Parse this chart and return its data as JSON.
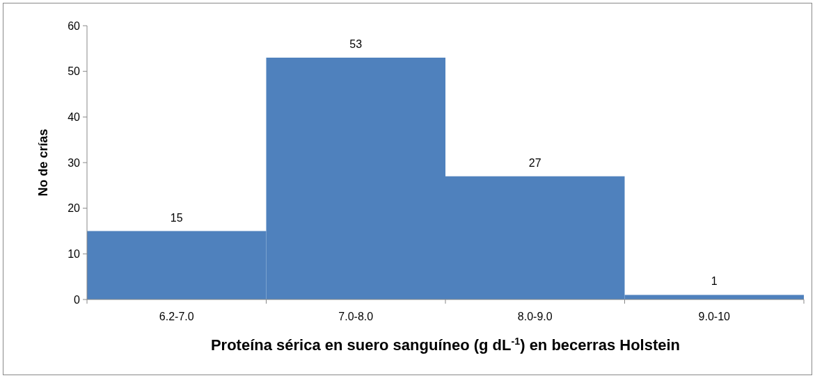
{
  "chart_data": {
    "type": "bar",
    "xlabel": "Proteína sérica en suero sanguíneo (g dL$^{-1}$) en becerras Holstein",
    "ylabel": "No de crías",
    "categories": [
      "6.2-7.0",
      "7.0-8.0",
      "8.0-9.0",
      "9.0-10"
    ],
    "values": [
      15,
      53,
      27,
      1
    ],
    "color": "#4f81bd",
    "ylim": [
      0,
      60
    ],
    "yticks": [
      0,
      10,
      20,
      30,
      40,
      50,
      60
    ],
    "data_labels": true,
    "grid": false
  }
}
